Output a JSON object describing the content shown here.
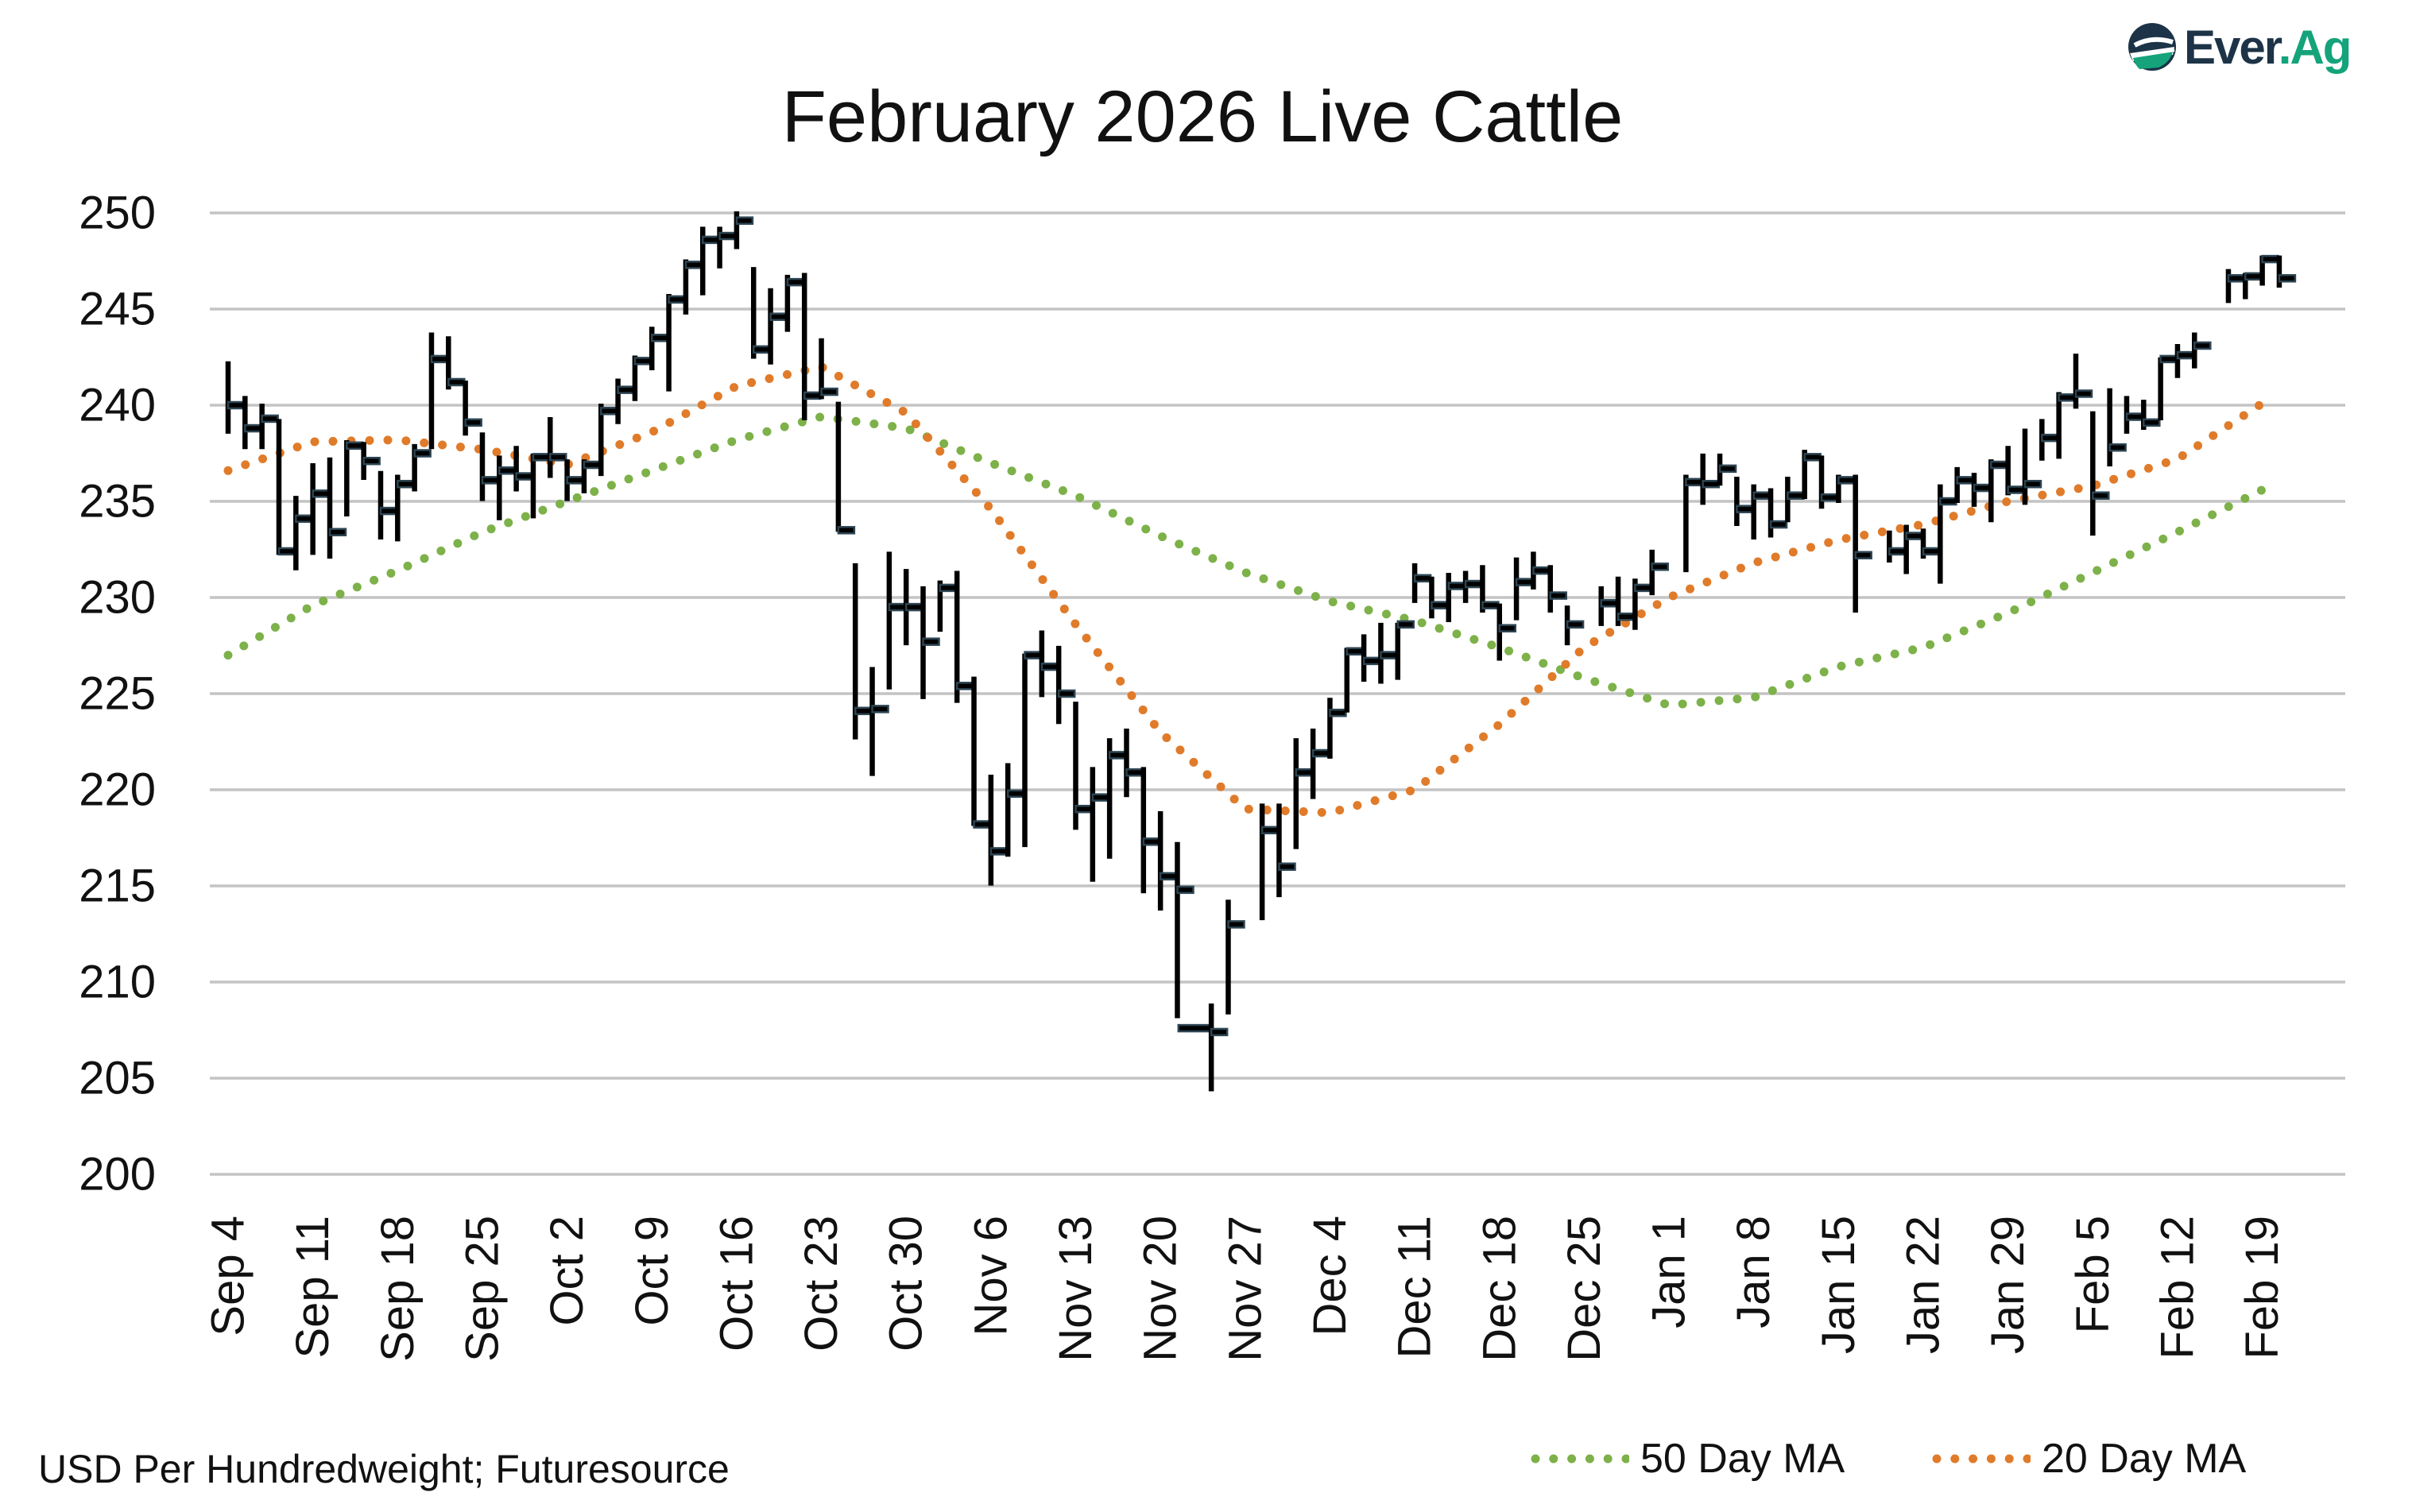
{
  "logo": {
    "text_primary": "Ever",
    "text_accent": ".Ag",
    "colors": {
      "primary": "#1d3347",
      "accent": "#14a37a"
    }
  },
  "footer": {
    "source": "USD Per Hundredweight; Futuresource"
  },
  "legend": {
    "ma50_label": "50 Day MA",
    "ma20_label": "20 Day MA"
  },
  "chart_data": {
    "type": "ohlc-bar",
    "title": "February 2026 Live Cattle",
    "xlabel": "",
    "ylabel": "",
    "ylim": [
      200,
      250
    ],
    "y_ticks": [
      200,
      205,
      210,
      215,
      220,
      225,
      230,
      235,
      240,
      245,
      250
    ],
    "grid": "horizontal",
    "legend_position": "bottom-right",
    "colors": {
      "bars": "#000000",
      "close_tick": "#2c4452",
      "ma50": "#7db149",
      "ma20": "#e07b2a",
      "grid": "#c4c4c4"
    },
    "x_ticks": [
      {
        "date": "2025-09-04",
        "label": "Sep 4"
      },
      {
        "date": "2025-09-11",
        "label": "Sep 11"
      },
      {
        "date": "2025-09-18",
        "label": "Sep 18"
      },
      {
        "date": "2025-09-25",
        "label": "Sep 25"
      },
      {
        "date": "2025-10-02",
        "label": "Oct 2"
      },
      {
        "date": "2025-10-09",
        "label": "Oct 9"
      },
      {
        "date": "2025-10-16",
        "label": "Oct 16"
      },
      {
        "date": "2025-10-23",
        "label": "Oct 23"
      },
      {
        "date": "2025-10-30",
        "label": "Oct 30"
      },
      {
        "date": "2025-11-06",
        "label": "Nov 6"
      },
      {
        "date": "2025-11-13",
        "label": "Nov 13"
      },
      {
        "date": "2025-11-20",
        "label": "Nov 20"
      },
      {
        "date": "2025-11-27",
        "label": "Nov 27"
      },
      {
        "date": "2025-12-04",
        "label": "Dec 4"
      },
      {
        "date": "2025-12-11",
        "label": "Dec 11"
      },
      {
        "date": "2025-12-18",
        "label": "Dec 18"
      },
      {
        "date": "2025-12-25",
        "label": "Dec 25"
      },
      {
        "date": "2026-01-01",
        "label": "Jan 1"
      },
      {
        "date": "2026-01-08",
        "label": "Jan 8"
      },
      {
        "date": "2026-01-15",
        "label": "Jan 15"
      },
      {
        "date": "2026-01-22",
        "label": "Jan 22"
      },
      {
        "date": "2026-01-29",
        "label": "Jan 29"
      },
      {
        "date": "2026-02-05",
        "label": "Feb 5"
      },
      {
        "date": "2026-02-12",
        "label": "Feb 12"
      },
      {
        "date": "2026-02-19",
        "label": "Feb 19"
      }
    ],
    "bars_fields": [
      "date",
      "high",
      "low",
      "close"
    ],
    "bars": [
      [
        "2025-09-04",
        242.2,
        238.6,
        240.0
      ],
      [
        "2025-09-05",
        240.4,
        237.8,
        238.8
      ],
      [
        "2025-09-08",
        240.0,
        237.8,
        239.3
      ],
      [
        "2025-09-09",
        239.2,
        232.3,
        232.4
      ],
      [
        "2025-09-10",
        235.2,
        231.5,
        234.1
      ],
      [
        "2025-09-11",
        236.9,
        232.3,
        235.4
      ],
      [
        "2025-09-12",
        237.2,
        232.1,
        233.4
      ],
      [
        "2025-09-15",
        238.1,
        234.3,
        237.9
      ],
      [
        "2025-09-16",
        238.0,
        236.2,
        237.1
      ],
      [
        "2025-09-17",
        236.5,
        233.1,
        234.5
      ],
      [
        "2025-09-18",
        236.3,
        233.0,
        235.9
      ],
      [
        "2025-09-19",
        237.9,
        235.6,
        237.5
      ],
      [
        "2025-09-22",
        243.7,
        237.8,
        242.4
      ],
      [
        "2025-09-23",
        243.5,
        240.9,
        241.2
      ],
      [
        "2025-09-24",
        241.2,
        238.5,
        239.1
      ],
      [
        "2025-09-25",
        238.5,
        235.1,
        236.1
      ],
      [
        "2025-09-26",
        237.3,
        234.1,
        236.6
      ],
      [
        "2025-09-29",
        237.8,
        235.6,
        236.3
      ],
      [
        "2025-09-30",
        237.4,
        234.2,
        237.3
      ],
      [
        "2025-10-01",
        239.3,
        236.3,
        237.3
      ],
      [
        "2025-10-02",
        237.1,
        235.1,
        236.1
      ],
      [
        "2025-10-03",
        237.1,
        235.5,
        236.9
      ],
      [
        "2025-10-06",
        240.0,
        236.4,
        239.7
      ],
      [
        "2025-10-07",
        241.3,
        239.1,
        240.8
      ],
      [
        "2025-10-08",
        242.5,
        240.3,
        242.3
      ],
      [
        "2025-10-09",
        244.0,
        241.9,
        243.5
      ],
      [
        "2025-10-10",
        245.7,
        240.8,
        245.5
      ],
      [
        "2025-10-13",
        247.5,
        244.8,
        247.3
      ],
      [
        "2025-10-14",
        249.2,
        245.8,
        248.6
      ],
      [
        "2025-10-15",
        249.2,
        247.2,
        248.8
      ],
      [
        "2025-10-16",
        250.0,
        248.2,
        249.6
      ],
      [
        "2025-10-17",
        247.1,
        242.5,
        242.9
      ],
      [
        "2025-10-20",
        246.0,
        242.2,
        244.6
      ],
      [
        "2025-10-21",
        246.7,
        243.9,
        246.4
      ],
      [
        "2025-10-22",
        246.8,
        239.3,
        240.5
      ],
      [
        "2025-10-23",
        243.4,
        240.4,
        240.7
      ],
      [
        "2025-10-24",
        240.1,
        233.5,
        233.5
      ],
      [
        "2025-10-27",
        231.7,
        222.7,
        224.1
      ],
      [
        "2025-10-28",
        226.3,
        220.8,
        224.2
      ],
      [
        "2025-10-29",
        232.3,
        225.3,
        229.5
      ],
      [
        "2025-10-30",
        231.4,
        227.6,
        229.5
      ],
      [
        "2025-10-31",
        230.5,
        224.8,
        227.7
      ],
      [
        "2025-11-03",
        230.8,
        228.3,
        230.5
      ],
      [
        "2025-11-04",
        231.3,
        224.6,
        225.4
      ],
      [
        "2025-11-05",
        225.8,
        218.2,
        218.2
      ],
      [
        "2025-11-06",
        220.7,
        215.1,
        216.8
      ],
      [
        "2025-11-07",
        221.3,
        216.6,
        219.8
      ],
      [
        "2025-11-10",
        227.0,
        217.1,
        227.0
      ],
      [
        "2025-11-11",
        228.2,
        224.9,
        226.4
      ],
      [
        "2025-11-12",
        227.4,
        223.5,
        225.0
      ],
      [
        "2025-11-13",
        224.5,
        218.0,
        219.0
      ],
      [
        "2025-11-14",
        221.1,
        215.3,
        219.6
      ],
      [
        "2025-11-17",
        222.6,
        216.5,
        221.8
      ],
      [
        "2025-11-18",
        223.1,
        219.7,
        220.9
      ],
      [
        "2025-11-19",
        221.1,
        214.7,
        217.3
      ],
      [
        "2025-11-20",
        218.8,
        213.8,
        215.5
      ],
      [
        "2025-11-21",
        217.2,
        208.2,
        214.8
      ],
      [
        "2025-11-24",
        207.6,
        207.6,
        207.6
      ],
      [
        "2025-11-25",
        208.8,
        204.4,
        207.4
      ],
      [
        "2025-11-26",
        214.2,
        208.4,
        213.0
      ],
      [
        "2025-11-28",
        219.2,
        213.3,
        217.9
      ],
      [
        "2025-12-01",
        219.2,
        214.5,
        216.0
      ],
      [
        "2025-12-02",
        222.6,
        217.0,
        220.9
      ],
      [
        "2025-12-03",
        223.1,
        219.6,
        221.9
      ],
      [
        "2025-12-04",
        224.7,
        221.7,
        224.0
      ],
      [
        "2025-12-05",
        227.3,
        224.1,
        227.2
      ],
      [
        "2025-12-08",
        228.0,
        225.7,
        226.7
      ],
      [
        "2025-12-09",
        228.6,
        225.6,
        227.0
      ],
      [
        "2025-12-10",
        228.6,
        225.8,
        228.6
      ],
      [
        "2025-12-11",
        231.7,
        229.8,
        231.0
      ],
      [
        "2025-12-12",
        231.0,
        229.0,
        229.6
      ],
      [
        "2025-12-15",
        231.2,
        228.8,
        230.6
      ],
      [
        "2025-12-16",
        231.3,
        229.8,
        230.7
      ],
      [
        "2025-12-17",
        231.6,
        229.3,
        229.6
      ],
      [
        "2025-12-18",
        229.6,
        226.8,
        228.4
      ],
      [
        "2025-12-19",
        232.0,
        228.9,
        230.8
      ],
      [
        "2025-12-22",
        232.3,
        230.5,
        231.4
      ],
      [
        "2025-12-23",
        231.6,
        229.3,
        230.1
      ],
      [
        "2025-12-24",
        229.5,
        227.6,
        228.6
      ],
      [
        "2025-12-26",
        230.5,
        228.6,
        229.7
      ],
      [
        "2025-12-29",
        231.0,
        228.6,
        229.0
      ],
      [
        "2025-12-30",
        230.9,
        228.4,
        230.5
      ],
      [
        "2025-12-31",
        232.4,
        230.2,
        231.6
      ],
      [
        "2026-01-02",
        236.3,
        231.4,
        236.0
      ],
      [
        "2026-01-05",
        237.4,
        234.9,
        235.9
      ],
      [
        "2026-01-06",
        237.4,
        235.9,
        236.7
      ],
      [
        "2026-01-07",
        236.2,
        233.8,
        234.6
      ],
      [
        "2026-01-08",
        235.8,
        233.1,
        235.3
      ],
      [
        "2026-01-09",
        235.6,
        233.2,
        233.8
      ],
      [
        "2026-01-12",
        236.2,
        234.0,
        235.3
      ],
      [
        "2026-01-13",
        237.6,
        235.2,
        237.3
      ],
      [
        "2026-01-14",
        237.3,
        234.7,
        235.2
      ],
      [
        "2026-01-15",
        236.3,
        235.0,
        236.1
      ],
      [
        "2026-01-16",
        236.3,
        229.3,
        232.2
      ],
      [
        "2026-01-20",
        233.4,
        231.9,
        232.4
      ],
      [
        "2026-01-21",
        233.7,
        231.3,
        233.2
      ],
      [
        "2026-01-22",
        233.5,
        232.1,
        232.4
      ],
      [
        "2026-01-23",
        235.8,
        230.8,
        235.0
      ],
      [
        "2026-01-26",
        236.7,
        235.0,
        236.1
      ],
      [
        "2026-01-27",
        236.4,
        234.8,
        235.7
      ],
      [
        "2026-01-28",
        237.1,
        234.0,
        236.9
      ],
      [
        "2026-01-29",
        237.8,
        235.4,
        235.6
      ],
      [
        "2026-01-30",
        238.7,
        234.9,
        235.9
      ],
      [
        "2026-02-02",
        239.2,
        237.2,
        238.3
      ],
      [
        "2026-02-03",
        240.6,
        237.3,
        240.4
      ],
      [
        "2026-02-04",
        242.6,
        239.9,
        240.6
      ],
      [
        "2026-02-05",
        239.6,
        233.3,
        235.3
      ],
      [
        "2026-02-06",
        240.8,
        236.9,
        237.8
      ],
      [
        "2026-02-09",
        240.4,
        238.6,
        239.4
      ],
      [
        "2026-02-10",
        240.2,
        238.8,
        239.1
      ],
      [
        "2026-02-11",
        242.4,
        239.3,
        242.4
      ],
      [
        "2026-02-12",
        243.1,
        241.5,
        242.6
      ],
      [
        "2026-02-13",
        243.7,
        242.0,
        243.1
      ],
      [
        "2026-02-17",
        247.0,
        245.4,
        246.6
      ],
      [
        "2026-02-18",
        246.8,
        245.6,
        246.7
      ],
      [
        "2026-02-19",
        247.7,
        246.3,
        247.6
      ],
      [
        "2026-02-20",
        247.7,
        246.2,
        246.6
      ]
    ],
    "series": [
      {
        "name": "50 Day MA",
        "style": "dotted",
        "x_ref": "x_ticks",
        "values": [
          227.0,
          229.6,
          231.4,
          233.4,
          235.0,
          236.6,
          238.2,
          239.4,
          238.8,
          237.0,
          235.3,
          233.2,
          231.3,
          229.8,
          228.8,
          227.4,
          225.8,
          224.4,
          224.8,
          226.4,
          227.4,
          229.2,
          231.3,
          233.4,
          235.6
        ]
      },
      {
        "name": "20 Day MA",
        "style": "dotted",
        "x_ref": "x_ticks",
        "values": [
          236.6,
          238.1,
          238.2,
          237.7,
          236.9,
          238.6,
          241.0,
          242.0,
          239.6,
          234.6,
          228.6,
          223.0,
          219.0,
          218.8,
          220.0,
          223.4,
          227.4,
          230.0,
          231.8,
          233.0,
          233.8,
          235.0,
          235.8,
          237.2,
          240.1
        ]
      }
    ]
  }
}
